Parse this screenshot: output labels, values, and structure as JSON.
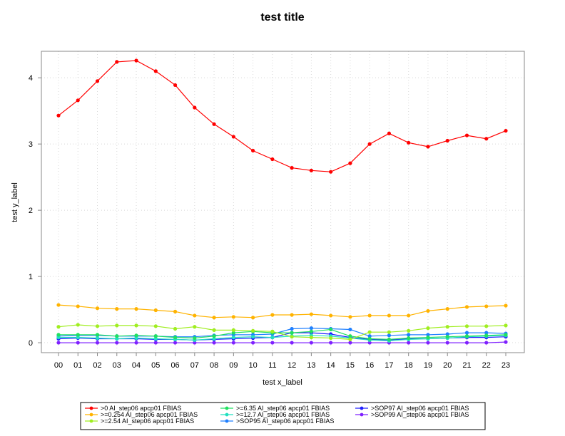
{
  "chart_data": {
    "type": "line",
    "title": "test title",
    "xlabel": "test x_label",
    "ylabel": "test y_label",
    "x": [
      "00",
      "01",
      "02",
      "03",
      "04",
      "05",
      "06",
      "07",
      "08",
      "09",
      "10",
      "11",
      "12",
      "13",
      "14",
      "15",
      "16",
      "17",
      "18",
      "19",
      "20",
      "21",
      "22",
      "23"
    ],
    "ylim": [
      -0.15,
      4.4
    ],
    "yticks": [
      0,
      1,
      2,
      3,
      4
    ],
    "grid": true,
    "legend_position": "bottom",
    "series": [
      {
        "name": ">0 AI_step06 apcp01 FBIAS",
        "color": "#ff0000",
        "values": [
          3.43,
          3.66,
          3.95,
          4.24,
          4.26,
          4.1,
          3.89,
          3.55,
          3.3,
          3.11,
          2.9,
          2.77,
          2.64,
          2.6,
          2.58,
          2.71,
          3.0,
          3.16,
          3.02,
          2.96,
          3.05,
          3.13,
          3.08,
          3.2
        ]
      },
      {
        "name": ">=0.254 AI_step06 apcp01 FBIAS",
        "color": "#ffb300",
        "values": [
          0.57,
          0.55,
          0.52,
          0.51,
          0.51,
          0.49,
          0.47,
          0.41,
          0.38,
          0.39,
          0.38,
          0.42,
          0.42,
          0.43,
          0.41,
          0.39,
          0.41,
          0.41,
          0.41,
          0.48,
          0.51,
          0.54,
          0.55,
          0.56
        ]
      },
      {
        "name": ">=2.54 AI_step06 apcp01 FBIAS",
        "color": "#a0ee20",
        "values": [
          0.24,
          0.27,
          0.25,
          0.26,
          0.26,
          0.25,
          0.21,
          0.24,
          0.19,
          0.19,
          0.18,
          0.17,
          0.09,
          0.08,
          0.07,
          0.05,
          0.16,
          0.16,
          0.18,
          0.22,
          0.24,
          0.25,
          0.25,
          0.26
        ]
      },
      {
        "name": ">=6.35 AI_step06 apcp01 FBIAS",
        "color": "#20e060",
        "values": [
          0.12,
          0.12,
          0.12,
          0.1,
          0.11,
          0.1,
          0.08,
          0.07,
          0.1,
          0.15,
          0.17,
          0.15,
          0.15,
          0.17,
          0.2,
          0.1,
          0.06,
          0.05,
          0.07,
          0.08,
          0.09,
          0.1,
          0.11,
          0.12
        ]
      },
      {
        "name": ">=12.7 AI_step06 apcp01 FBIAS",
        "color": "#20e0c0",
        "values": [
          0.08,
          0.08,
          0.07,
          0.06,
          0.07,
          0.06,
          0.05,
          0.04,
          0.06,
          0.08,
          0.09,
          0.08,
          0.1,
          0.11,
          0.1,
          0.07,
          0.04,
          0.03,
          0.05,
          0.06,
          0.07,
          0.09,
          0.1,
          0.11
        ]
      },
      {
        "name": ">SOP95 AI_step06 apcp01 FBIAS",
        "color": "#2080ff",
        "values": [
          0.1,
          0.11,
          0.11,
          0.1,
          0.1,
          0.1,
          0.09,
          0.09,
          0.11,
          0.12,
          0.12,
          0.13,
          0.21,
          0.22,
          0.21,
          0.2,
          0.1,
          0.11,
          0.12,
          0.12,
          0.13,
          0.15,
          0.15,
          0.14
        ]
      },
      {
        "name": ">SOP97 AI_step06 apcp01 FBIAS",
        "color": "#2020ff",
        "values": [
          0.06,
          0.07,
          0.06,
          0.06,
          0.06,
          0.05,
          0.05,
          0.04,
          0.05,
          0.06,
          0.07,
          0.08,
          0.15,
          0.15,
          0.13,
          0.08,
          0.05,
          0.04,
          0.06,
          0.06,
          0.07,
          0.08,
          0.08,
          0.09
        ]
      },
      {
        "name": ">SOP99 AI_step06 apcp01 FBIAS",
        "color": "#7f20ff",
        "values": [
          0.0,
          0.0,
          0.0,
          0.0,
          0.0,
          0.0,
          0.0,
          0.0,
          0.0,
          0.0,
          0.0,
          0.0,
          0.0,
          0.0,
          0.0,
          0.0,
          0.0,
          0.0,
          0.0,
          0.0,
          0.0,
          0.0,
          0.0,
          0.01
        ]
      }
    ]
  }
}
